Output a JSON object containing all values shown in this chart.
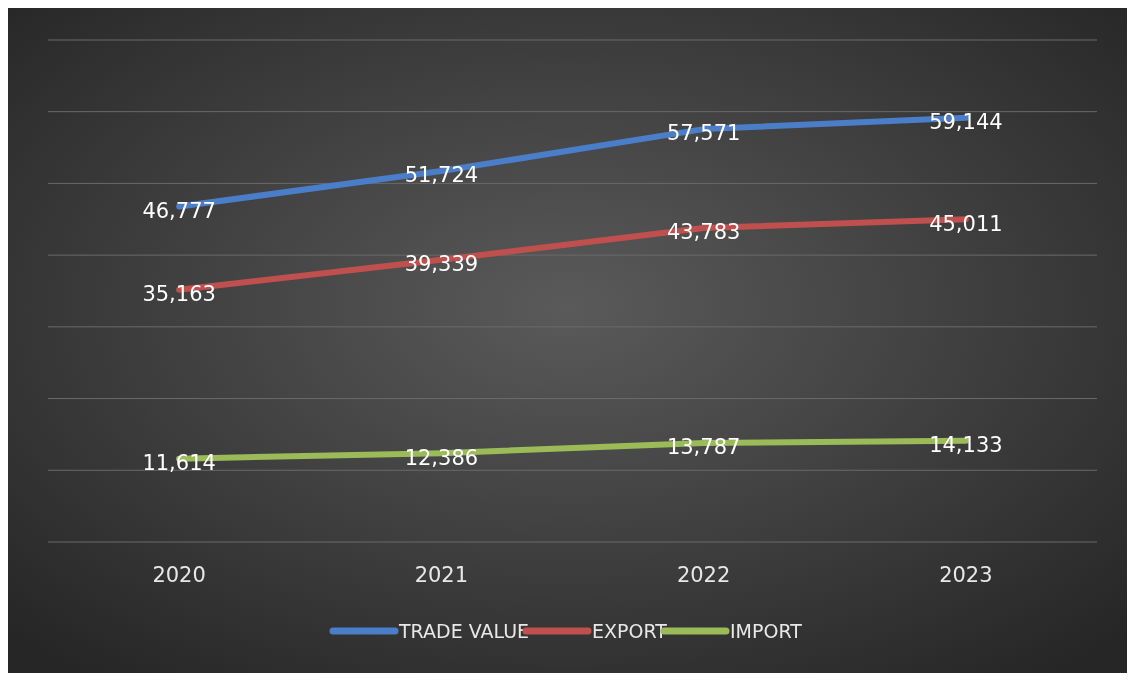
{
  "chart_data": {
    "type": "line",
    "categories": [
      "2020",
      "2021",
      "2022",
      "2023"
    ],
    "series": [
      {
        "name": "TRADE VALUE",
        "color": "#4a7ec8",
        "values": [
          46777,
          51724,
          57571,
          59144
        ],
        "value_labels": [
          "46,777",
          "51,724",
          "57,571",
          "59,144"
        ]
      },
      {
        "name": "EXPORT",
        "color": "#c0504d",
        "values": [
          35163,
          39339,
          43783,
          45011
        ],
        "value_labels": [
          "35,163",
          "39,339",
          "43,783",
          "45,011"
        ]
      },
      {
        "name": "IMPORT",
        "color": "#9bbb59",
        "values": [
          11614,
          12386,
          13787,
          14133
        ],
        "value_labels": [
          "11,614",
          "12,386",
          "13,787",
          "14,133"
        ]
      }
    ],
    "grid": "y",
    "legend": "bottom",
    "marker": "none",
    "line_style": "solid",
    "tick_labels": "x"
  }
}
